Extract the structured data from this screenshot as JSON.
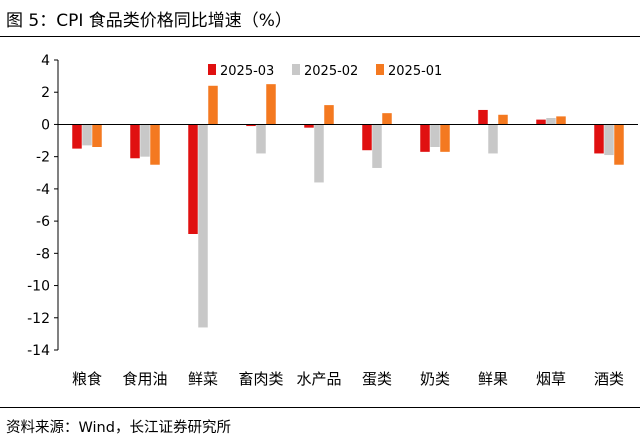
{
  "figure": {
    "title": "图 5：CPI 食品类价格同比增速（%）",
    "source": "资料来源：Wind，长江证券研究所"
  },
  "chart_data": {
    "type": "bar",
    "categories": [
      "粮食",
      "食用油",
      "鲜菜",
      "畜肉类",
      "水产品",
      "蛋类",
      "奶类",
      "鲜果",
      "烟草",
      "酒类"
    ],
    "series": [
      {
        "name": "2025-03",
        "color": "#e01010",
        "values": [
          -1.5,
          -2.1,
          -6.8,
          -0.1,
          -0.2,
          -1.6,
          -1.7,
          0.9,
          0.3,
          -1.8
        ]
      },
      {
        "name": "2025-02",
        "color": "#c8c8c8",
        "values": [
          -1.3,
          -2.0,
          -12.6,
          -1.8,
          -3.6,
          -2.7,
          -1.4,
          -1.8,
          0.4,
          -1.9
        ]
      },
      {
        "name": "2025-01",
        "color": "#f47920",
        "values": [
          -1.4,
          -2.5,
          2.4,
          2.5,
          1.2,
          0.7,
          -1.7,
          0.6,
          0.5,
          -2.5
        ]
      }
    ],
    "yticks": [
      "4",
      "2",
      "0",
      "-2",
      "-4",
      "-6",
      "-8",
      "-10",
      "-12",
      "-14"
    ],
    "ylim": [
      -14,
      4
    ],
    "xlabel": "",
    "ylabel": "",
    "grid": false,
    "legend": "top-right"
  }
}
